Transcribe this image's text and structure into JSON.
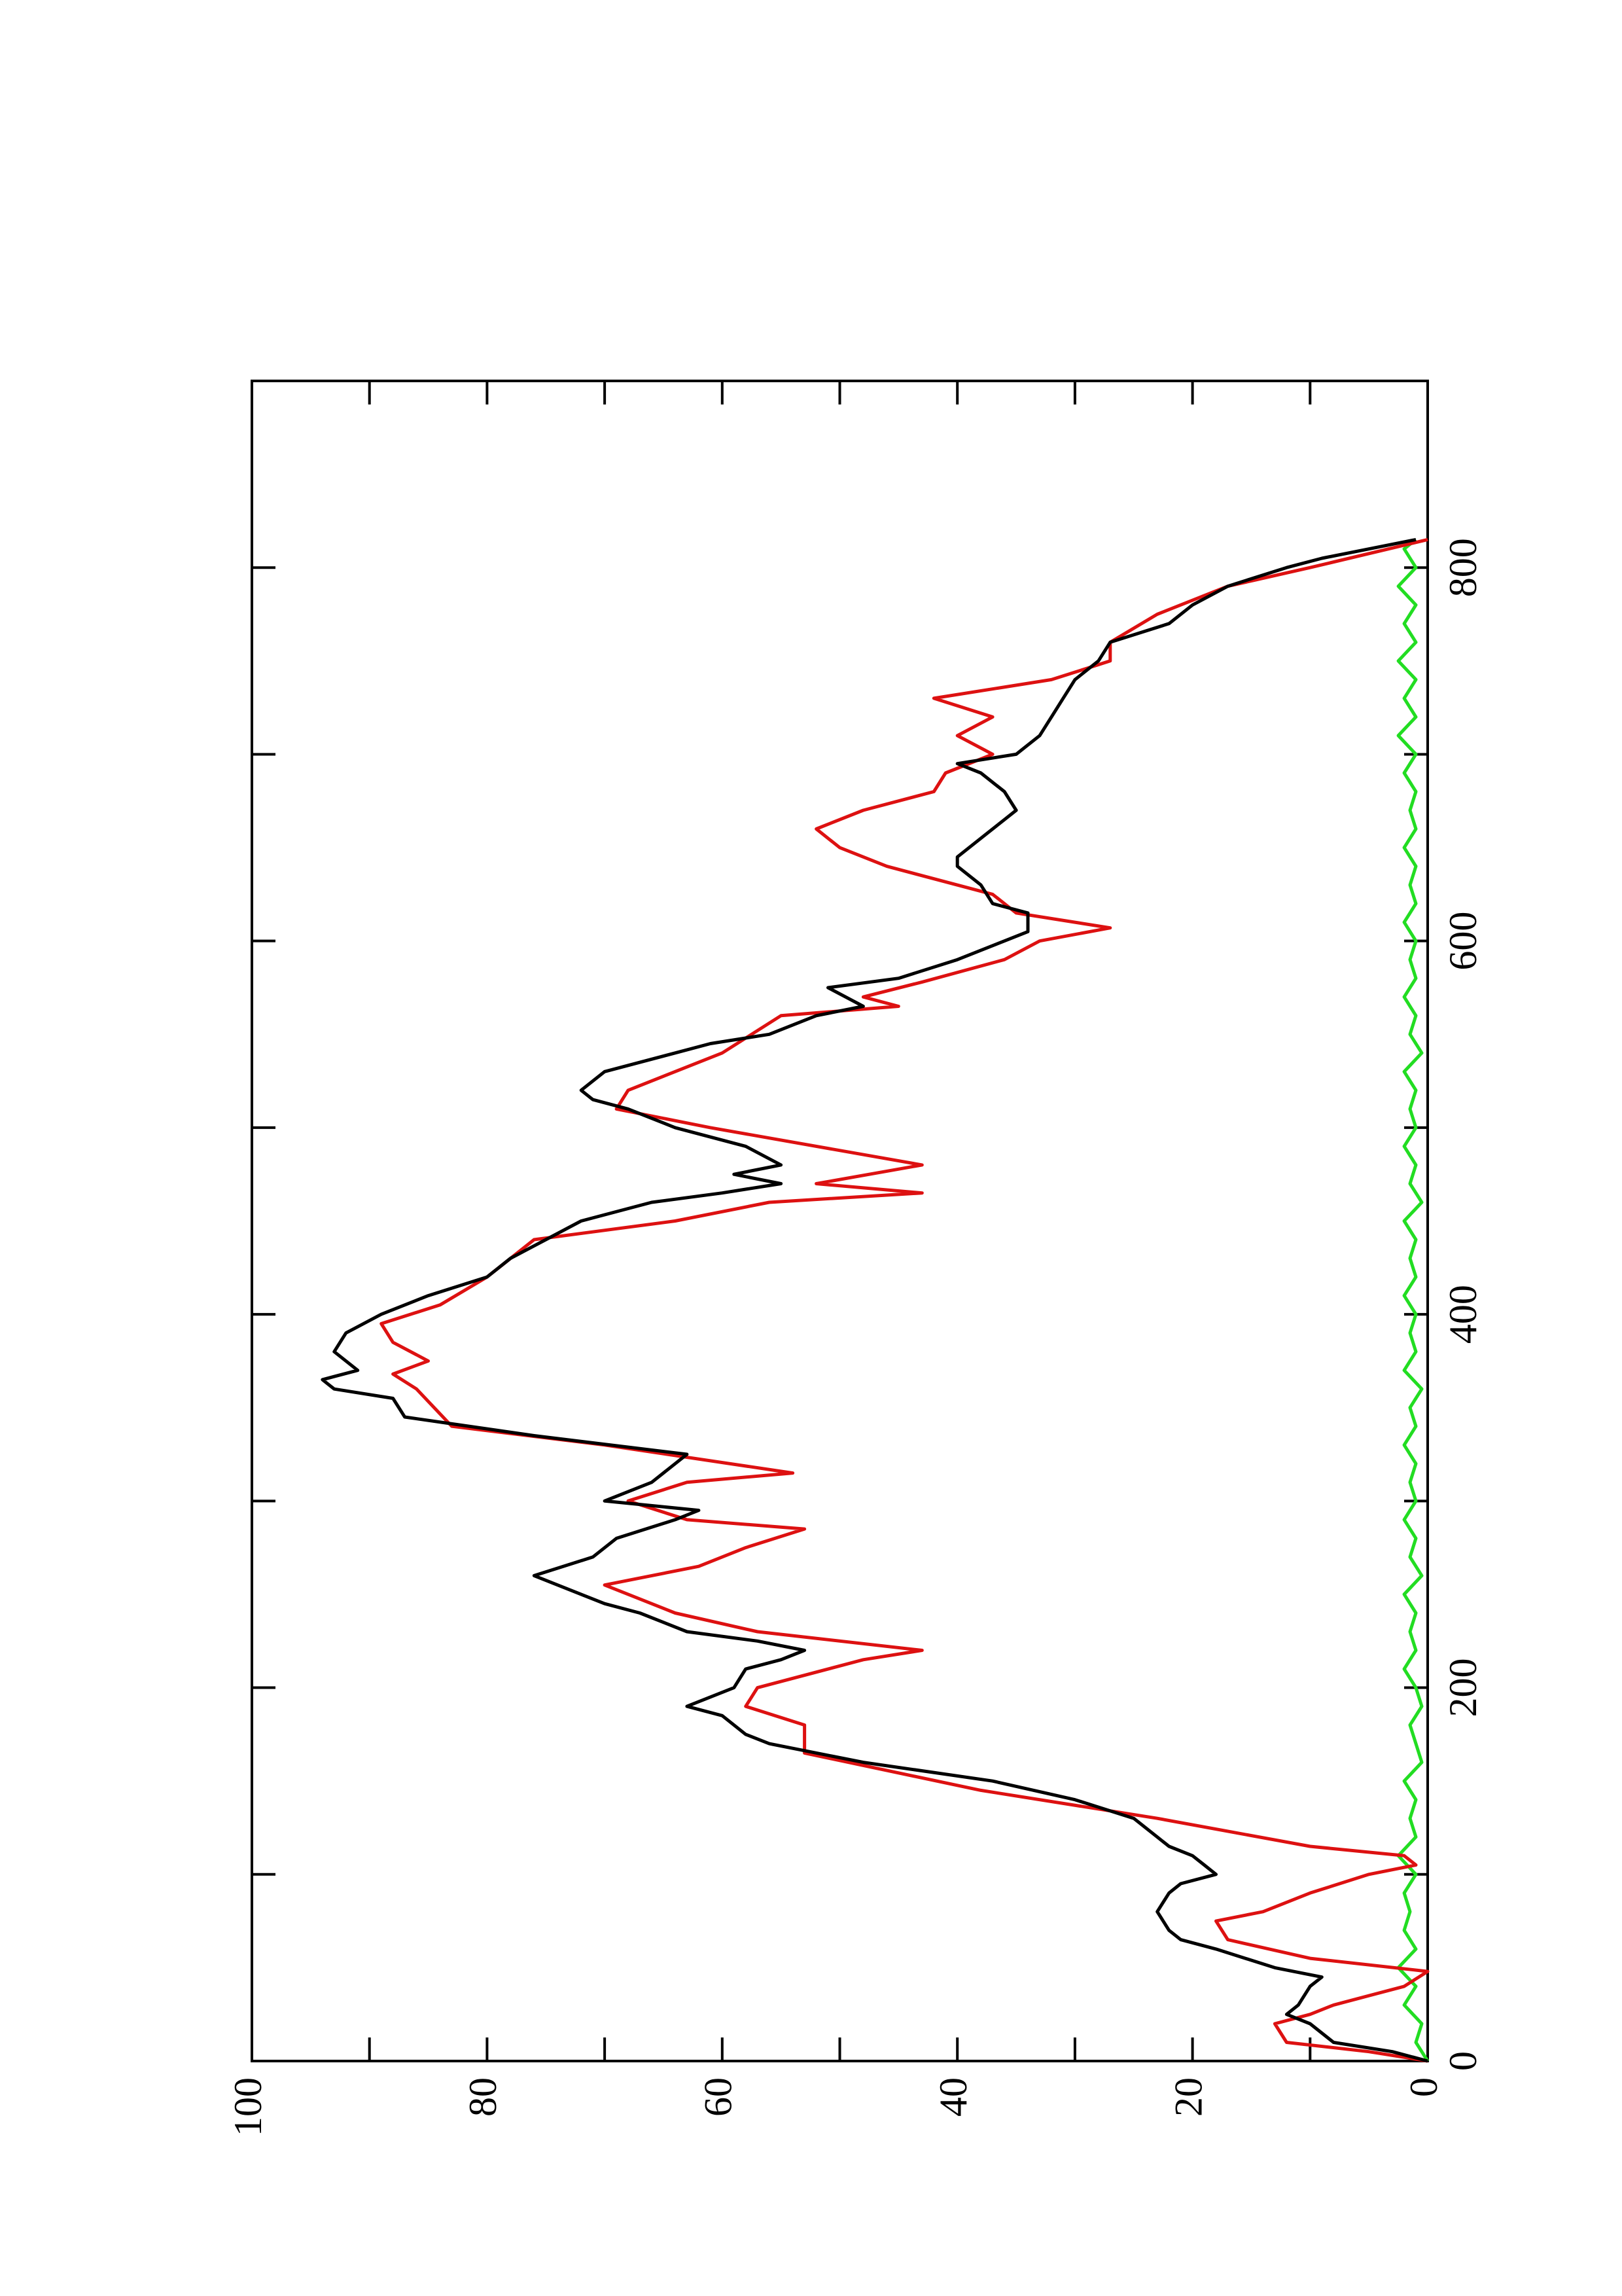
{
  "chart_data": {
    "type": "line",
    "xlim": [
      0,
      900
    ],
    "xticks": [
      0,
      200,
      400,
      600,
      800
    ],
    "xminorticks": [
      100,
      300,
      500,
      700
    ],
    "ylim": [
      0,
      100
    ],
    "yticks": [
      0,
      20,
      40,
      60,
      80,
      100
    ],
    "yminorticks": [
      10,
      30,
      50,
      70,
      90
    ],
    "series": [
      {
        "color": "#000000",
        "x": [
          0,
          5,
          10,
          20,
          25,
          30,
          40,
          45,
          50,
          60,
          65,
          70,
          80,
          90,
          95,
          100,
          105,
          110,
          115,
          120,
          130,
          140,
          150,
          160,
          170,
          175,
          185,
          190,
          200,
          210,
          215,
          220,
          225,
          230,
          240,
          245,
          255,
          260,
          270,
          280,
          290,
          295,
          300,
          310,
          320,
          325,
          335,
          345,
          355,
          360,
          365,
          370,
          380,
          390,
          400,
          410,
          420,
          430,
          440,
          450,
          460,
          465,
          470,
          475,
          480,
          490,
          500,
          510,
          515,
          520,
          530,
          540,
          545,
          550,
          560,
          565,
          575,
          580,
          590,
          600,
          605,
          615,
          620,
          630,
          640,
          645,
          655,
          665,
          670,
          680,
          690,
          695,
          700,
          710,
          720,
          730,
          740,
          750,
          760,
          770,
          780,
          790,
          800,
          805,
          810,
          815
        ],
        "values": [
          0,
          3,
          8,
          10,
          12,
          11,
          10,
          9,
          13,
          18,
          21,
          22,
          23,
          22,
          21,
          18,
          19,
          20,
          22,
          23,
          25,
          30,
          37,
          48,
          56,
          58,
          60,
          63,
          59,
          58,
          55,
          53,
          57,
          63,
          67,
          70,
          74,
          76,
          71,
          69,
          64,
          62,
          70,
          66,
          64,
          63,
          76,
          87,
          88,
          93,
          94,
          91,
          93,
          92,
          89,
          85,
          80,
          78,
          75,
          72,
          66,
          60,
          55,
          59,
          55,
          58,
          64,
          68,
          71,
          72,
          70,
          64,
          61,
          56,
          52,
          48,
          51,
          45,
          40,
          36,
          34,
          34,
          37,
          38,
          40,
          40,
          38,
          36,
          35,
          36,
          38,
          40,
          35,
          33,
          32,
          31,
          30,
          28,
          27,
          22,
          20,
          17,
          12,
          9,
          5,
          1
        ]
      },
      {
        "color": "#dd1111",
        "x": [
          0,
          5,
          10,
          20,
          25,
          30,
          40,
          48,
          55,
          65,
          75,
          80,
          90,
          100,
          105,
          110,
          115,
          130,
          145,
          165,
          180,
          190,
          200,
          215,
          220,
          230,
          240,
          250,
          255,
          265,
          275,
          285,
          290,
          300,
          310,
          315,
          330,
          340,
          360,
          368,
          375,
          385,
          395,
          405,
          420,
          440,
          450,
          460,
          465,
          470,
          480,
          500,
          510,
          520,
          540,
          560,
          565,
          570,
          578,
          590,
          600,
          607,
          615,
          625,
          640,
          650,
          660,
          670,
          680,
          690,
          700,
          710,
          720,
          730,
          740,
          750,
          760,
          775,
          790,
          800,
          815
        ],
        "values": [
          0,
          5,
          12,
          13,
          10,
          8,
          2,
          0,
          10,
          17,
          18,
          14,
          10,
          5,
          1,
          2,
          10,
          23,
          38,
          53,
          53,
          58,
          57,
          48,
          43,
          57,
          64,
          68,
          70,
          62,
          58,
          53,
          63,
          68,
          63,
          54,
          70,
          83,
          86,
          88,
          85,
          88,
          89,
          84,
          80,
          76,
          64,
          56,
          43,
          52,
          43,
          61,
          69,
          68,
          60,
          55,
          45,
          48,
          43,
          36,
          33,
          27,
          35,
          37,
          46,
          50,
          52,
          48,
          42,
          41,
          37,
          40,
          37,
          42,
          32,
          27,
          27,
          23,
          17,
          10,
          0
        ]
      },
      {
        "color": "#22dd22",
        "x": [
          0,
          10,
          20,
          30,
          40,
          50,
          60,
          70,
          80,
          90,
          100,
          110,
          120,
          130,
          140,
          150,
          160,
          170,
          180,
          190,
          200,
          210,
          220,
          230,
          240,
          250,
          260,
          270,
          280,
          290,
          300,
          310,
          320,
          330,
          340,
          350,
          360,
          370,
          380,
          390,
          400,
          410,
          420,
          430,
          440,
          450,
          460,
          470,
          480,
          490,
          500,
          510,
          520,
          530,
          540,
          550,
          560,
          570,
          580,
          590,
          600,
          610,
          620,
          630,
          640,
          650,
          660,
          670,
          680,
          690,
          700,
          710,
          720,
          730,
          740,
          750,
          760,
          770,
          780,
          790,
          800,
          810,
          815
        ],
        "values": [
          0,
          1,
          0.5,
          2,
          1,
          2.5,
          1,
          2,
          1.5,
          2,
          1,
          2.5,
          1,
          1.5,
          1,
          2,
          0.5,
          1,
          1.5,
          0.5,
          1,
          2,
          1,
          1.5,
          1,
          2,
          0.5,
          1.5,
          1,
          2,
          1,
          1.5,
          1,
          2,
          1,
          1.5,
          0.5,
          2,
          1,
          1.5,
          1,
          2,
          1,
          1.5,
          1,
          2,
          0.5,
          1.5,
          1,
          2,
          1,
          1.5,
          1,
          2,
          0.5,
          1.5,
          1,
          2,
          1,
          1.5,
          1,
          2,
          1,
          1.5,
          1,
          2,
          1,
          1.5,
          1,
          2,
          1,
          2.5,
          1,
          2,
          1,
          2.5,
          1,
          2,
          1,
          2.5,
          1,
          2,
          1
        ]
      }
    ]
  }
}
